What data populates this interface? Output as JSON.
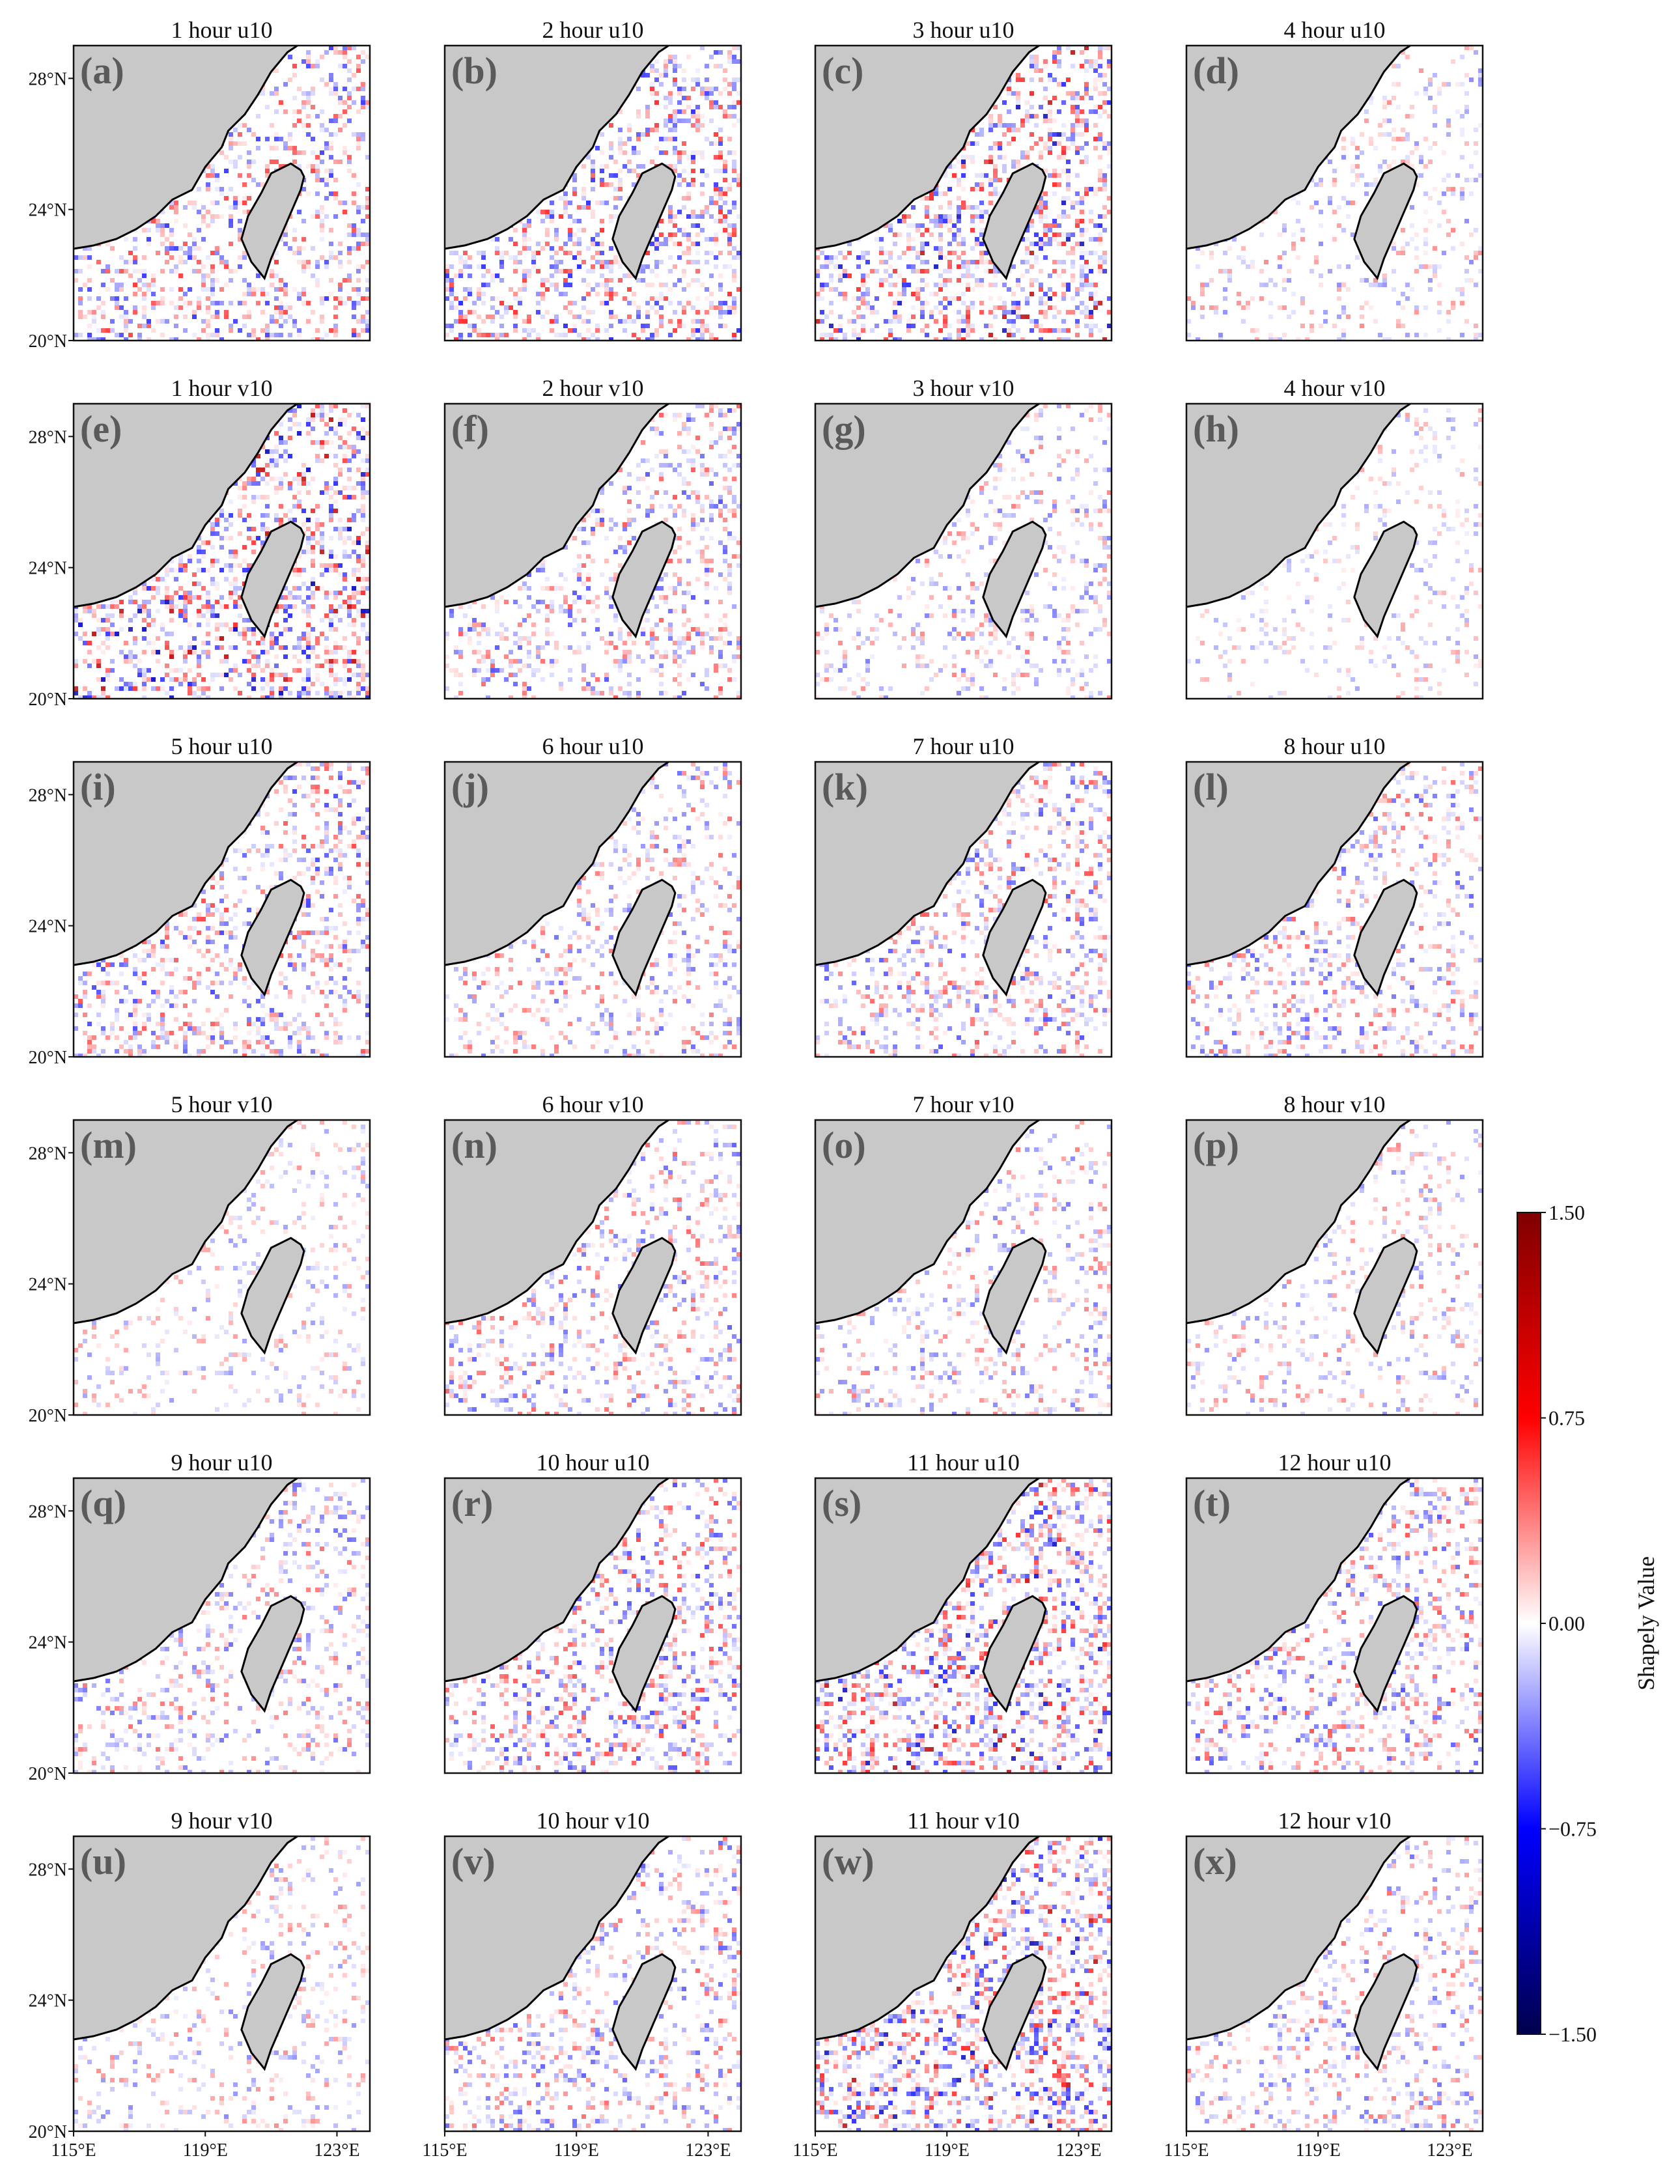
{
  "chart_data": {
    "type": "heatmap",
    "layout": {
      "rows": 6,
      "cols": 4
    },
    "x_range": [
      115,
      124
    ],
    "y_range": [
      20,
      29
    ],
    "x_ticks": [
      115,
      119,
      123
    ],
    "y_ticks": [
      20,
      24,
      28
    ],
    "x_tick_labels": [
      "115°E",
      "119°E",
      "123°E"
    ],
    "y_tick_labels": [
      "20°N",
      "24°N",
      "28°N"
    ],
    "panels": [
      {
        "letter": "(a)",
        "title": "1 hour u10",
        "intensity": 0.75
      },
      {
        "letter": "(b)",
        "title": "2 hour u10",
        "intensity": 0.8
      },
      {
        "letter": "(c)",
        "title": "3 hour u10",
        "intensity": 0.85
      },
      {
        "letter": "(d)",
        "title": "4 hour u10",
        "intensity": 0.45
      },
      {
        "letter": "(e)",
        "title": "1 hour v10",
        "intensity": 0.9
      },
      {
        "letter": "(f)",
        "title": "2 hour v10",
        "intensity": 0.65
      },
      {
        "letter": "(g)",
        "title": "3 hour v10",
        "intensity": 0.5
      },
      {
        "letter": "(h)",
        "title": "4 hour v10",
        "intensity": 0.35
      },
      {
        "letter": "(i)",
        "title": "5 hour u10",
        "intensity": 0.7
      },
      {
        "letter": "(j)",
        "title": "6 hour u10",
        "intensity": 0.55
      },
      {
        "letter": "(k)",
        "title": "7 hour u10",
        "intensity": 0.65
      },
      {
        "letter": "(l)",
        "title": "8 hour u10",
        "intensity": 0.6
      },
      {
        "letter": "(m)",
        "title": "5 hour v10",
        "intensity": 0.4
      },
      {
        "letter": "(n)",
        "title": "6 hour v10",
        "intensity": 0.6
      },
      {
        "letter": "(o)",
        "title": "7 hour v10",
        "intensity": 0.5
      },
      {
        "letter": "(p)",
        "title": "8 hour v10",
        "intensity": 0.45
      },
      {
        "letter": "(q)",
        "title": "9 hour u10",
        "intensity": 0.55
      },
      {
        "letter": "(r)",
        "title": "10 hour u10",
        "intensity": 0.7
      },
      {
        "letter": "(s)",
        "title": "11 hour u10",
        "intensity": 0.85
      },
      {
        "letter": "(t)",
        "title": "12 hour u10",
        "intensity": 0.65
      },
      {
        "letter": "(u)",
        "title": "9 hour v10",
        "intensity": 0.45
      },
      {
        "letter": "(v)",
        "title": "10 hour v10",
        "intensity": 0.6
      },
      {
        "letter": "(w)",
        "title": "11 hour v10",
        "intensity": 0.85
      },
      {
        "letter": "(x)",
        "title": "12 hour v10",
        "intensity": 0.55
      }
    ],
    "colorbar": {
      "label": "Shapely Value",
      "min": -1.5,
      "max": 1.5,
      "ticks": [
        1.5,
        0.75,
        0.0,
        -0.75,
        -1.5
      ],
      "tick_labels": [
        "1.50",
        "0.75",
        "0.00",
        "−0.75",
        "−1.50"
      ],
      "colormap": "seismic",
      "colors": [
        "#00004d",
        "#0000ff",
        "#ffffff",
        "#ff0000",
        "#800000"
      ]
    },
    "land_color": "#c8c8c8",
    "coast_color": "#000000"
  }
}
